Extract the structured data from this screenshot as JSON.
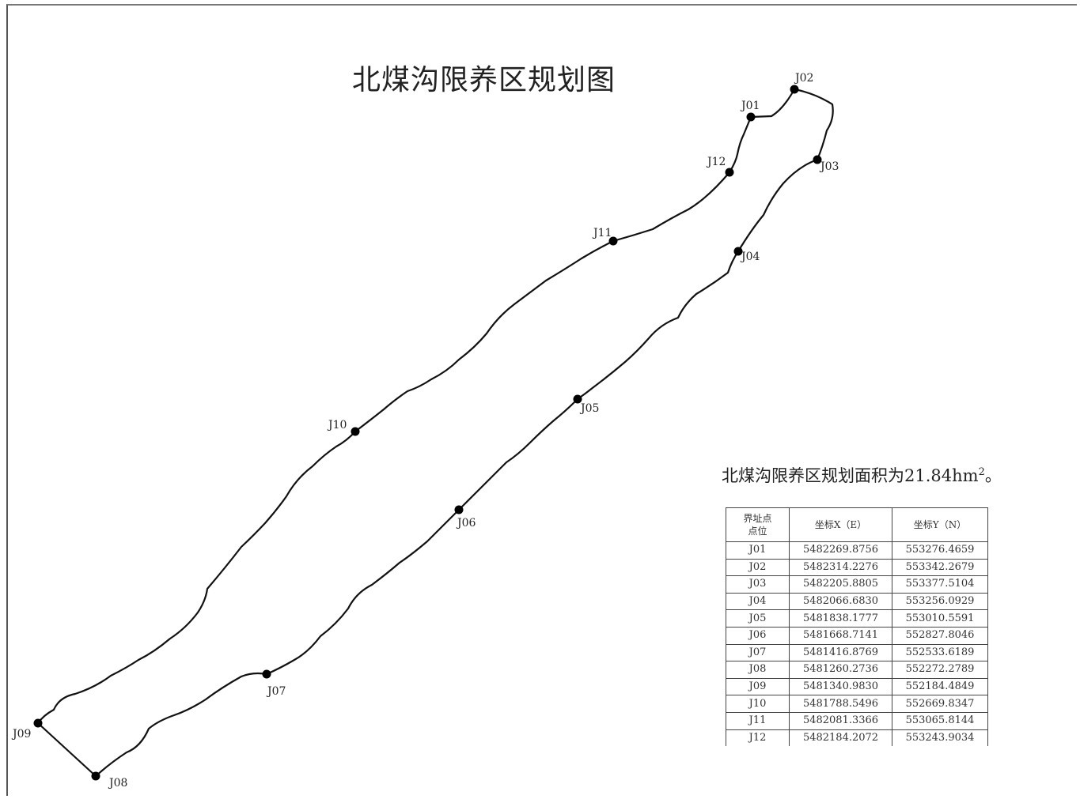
{
  "title": "北煤沟限养区规划图",
  "area_note": {
    "text": "北煤沟限养区规划面积为21.84h",
    "unit_suffix": "m",
    "superscript": "2",
    "end": "。"
  },
  "table": {
    "headers": [
      "界址点\n点位",
      "坐标X（E）",
      "坐标Y（N）"
    ],
    "rows": [
      [
        "J01",
        "5482269.8756",
        "553276.4659"
      ],
      [
        "J02",
        "5482314.2276",
        "553342.2679"
      ],
      [
        "J03",
        "5482205.8805",
        "553377.5104"
      ],
      [
        "J04",
        "5482066.6830",
        "553256.0929"
      ],
      [
        "J05",
        "5481838.1777",
        "553010.5591"
      ],
      [
        "J06",
        "5481668.7141",
        "552827.8046"
      ],
      [
        "J07",
        "5481416.8769",
        "552533.6189"
      ],
      [
        "J08",
        "5481260.2736",
        "552272.2789"
      ],
      [
        "J09",
        "5481340.9830",
        "552184.4849"
      ],
      [
        "J10",
        "5481788.5496",
        "552669.8347"
      ],
      [
        "J11",
        "5482081.3366",
        "553065.8144"
      ],
      [
        "J12",
        "5482184.2072",
        "553243.9034"
      ]
    ]
  },
  "point_labels": [
    "J01",
    "J02",
    "J03",
    "J04",
    "J05",
    "J06",
    "J07",
    "J08",
    "J09",
    "J10",
    "J11",
    "J12"
  ],
  "colors": {
    "boundary": "#111111",
    "point": "#000000",
    "text": "#222222"
  }
}
